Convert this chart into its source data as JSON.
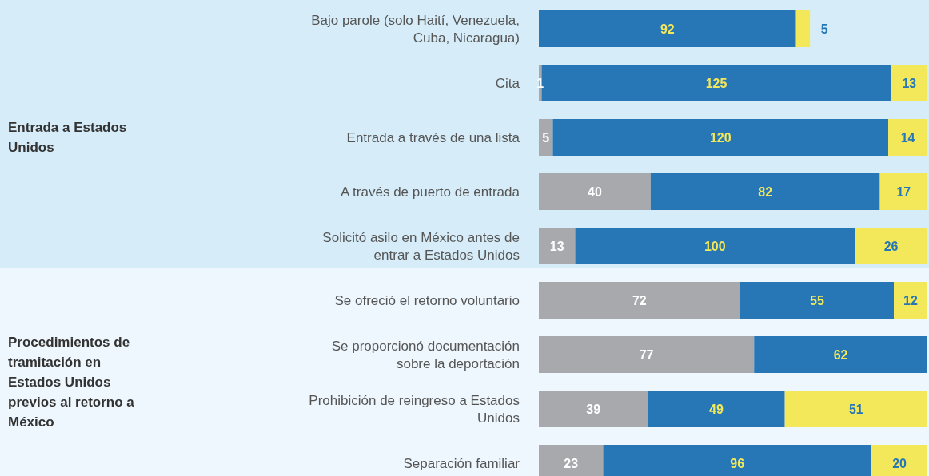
{
  "chart_data": {
    "type": "bar",
    "orientation": "horizontal",
    "stacked": true,
    "data_labels": true,
    "tick_labels": "y",
    "categories": [
      "Bajo parole (solo Haití, Venezuela, Cuba, Nicaragua)",
      "Cita",
      "Entrada a través de una lista",
      "A través de puerto de entrada",
      "Solicitó asilo en México antes de entrar a Estados Unidos",
      "Se ofreció el retorno voluntario",
      "Se proporcionó documentación sobre la deportación",
      "Prohibición de reingreso a Estados Unidos",
      "Separación familiar"
    ],
    "series": [
      {
        "color": "#a7a9ac",
        "values": [
          null,
          1,
          5,
          40,
          13,
          72,
          77,
          39,
          23
        ]
      },
      {
        "color": "#2776b6",
        "values": [
          92,
          125,
          120,
          82,
          100,
          55,
          62,
          49,
          96
        ]
      },
      {
        "color": "#f3e85a",
        "values": [
          5,
          13,
          14,
          17,
          26,
          12,
          null,
          51,
          20
        ]
      }
    ],
    "annotations": [
      "Entrada a Estados Unidos",
      "Procedimientos de tramitación en Estados Unidos previos al retorno a México"
    ]
  }
}
